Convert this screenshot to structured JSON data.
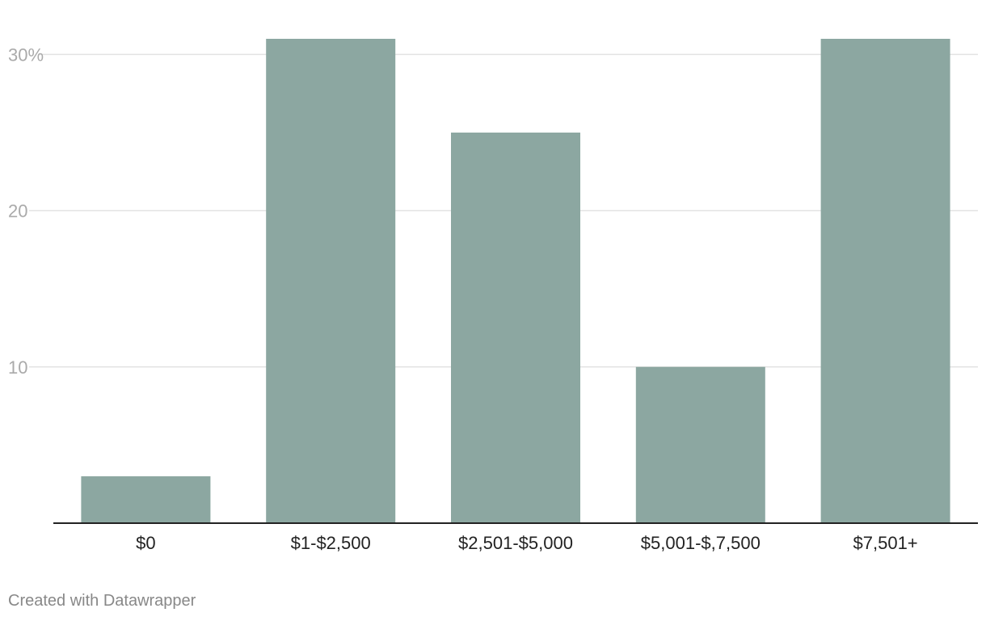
{
  "chart_data": {
    "type": "bar",
    "categories": [
      "$0",
      "$1-$2,500",
      "$2,501-$5,000",
      "$5,001-$,7,500",
      "$7,501+"
    ],
    "values": [
      3,
      31,
      25,
      10,
      31
    ],
    "ylim": [
      0,
      31
    ],
    "yticks": [
      10,
      20,
      30
    ],
    "ytick_labels": [
      "10",
      "20",
      "30%"
    ],
    "grid": true,
    "colors": {
      "bar": "#8ca7a1",
      "grid": "#e3e3e3",
      "axis": "#222222",
      "tick_text": "#aaaaaa",
      "category_text": "#222222"
    }
  },
  "footer": {
    "credit": "Created with Datawrapper"
  }
}
